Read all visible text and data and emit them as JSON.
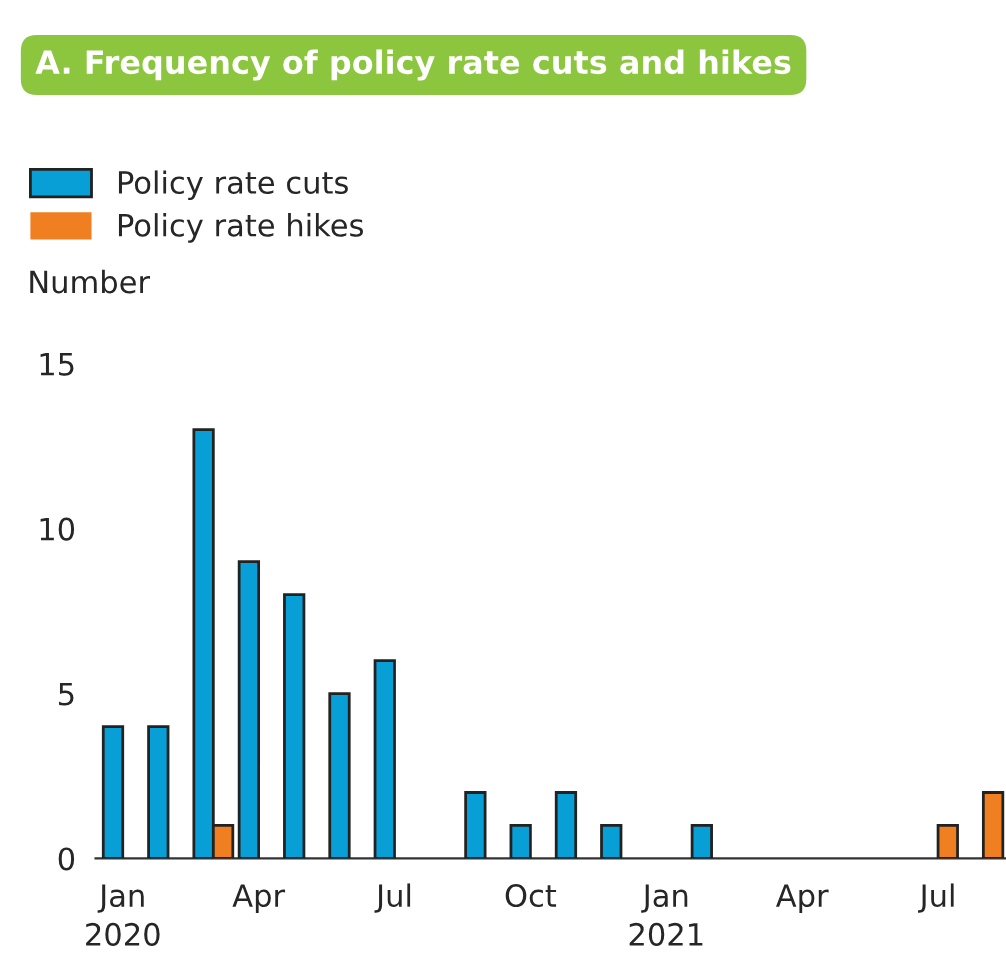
{
  "chart_data": {
    "type": "bar",
    "title": "A. Frequency of policy rate cuts and hikes",
    "ylabel": "Number",
    "categories": [
      "Jan\n2020",
      null,
      null,
      "Apr",
      null,
      null,
      "Jul",
      null,
      null,
      "Oct",
      null,
      null,
      "Jan\n2021",
      null,
      null,
      "Apr",
      null,
      null,
      "Jul",
      null
    ],
    "series": [
      {
        "name": "Policy rate cuts",
        "color": "#079fd6",
        "values": [
          4,
          4,
          13,
          9,
          8,
          5,
          6,
          0,
          2,
          1,
          2,
          1,
          0,
          1,
          0,
          0,
          0,
          0,
          0,
          0
        ]
      },
      {
        "name": "Policy rate hikes",
        "color": "#f07f22",
        "values": [
          0,
          0,
          1,
          0,
          0,
          0,
          0,
          0,
          0,
          0,
          0,
          0,
          0,
          0,
          0,
          0,
          0,
          0,
          1,
          2
        ]
      }
    ],
    "ylim": [
      0,
      15
    ],
    "yticks": [
      0,
      5,
      10,
      15
    ],
    "grid": false,
    "legend": "top left"
  }
}
